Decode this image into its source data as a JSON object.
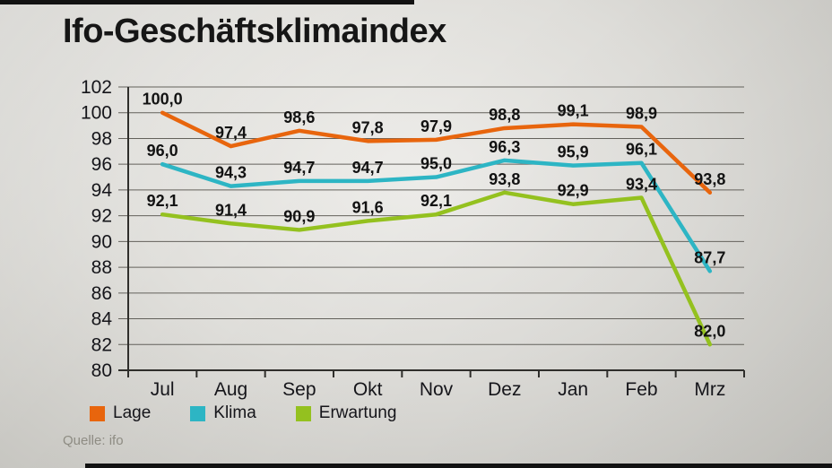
{
  "title": "Ifo-Geschäftsklimaindex",
  "source": "Quelle: ifo",
  "chart_data": {
    "type": "line",
    "title": "Ifo-Geschäftsklimaindex",
    "categories": [
      "Jul",
      "Aug",
      "Sep",
      "Okt",
      "Nov",
      "Dez",
      "Jan",
      "Feb",
      "Mrz"
    ],
    "series": [
      {
        "name": "Lage",
        "color": "#e8650d",
        "values": [
          100.0,
          97.4,
          98.6,
          97.8,
          97.9,
          98.8,
          99.1,
          98.9,
          93.8
        ]
      },
      {
        "name": "Klima",
        "color": "#2db5c4",
        "values": [
          96.0,
          94.3,
          94.7,
          94.7,
          95.0,
          96.3,
          95.9,
          96.1,
          87.7
        ]
      },
      {
        "name": "Erwartung",
        "color": "#94c11f",
        "values": [
          92.1,
          91.4,
          90.9,
          91.6,
          92.1,
          93.8,
          92.9,
          93.4,
          82.0
        ]
      }
    ],
    "xlabel": "",
    "ylabel": "",
    "ylim": [
      80,
      102
    ],
    "ytick_step": 2,
    "grid": true,
    "legend_position": "bottom",
    "decimal_separator": ","
  }
}
